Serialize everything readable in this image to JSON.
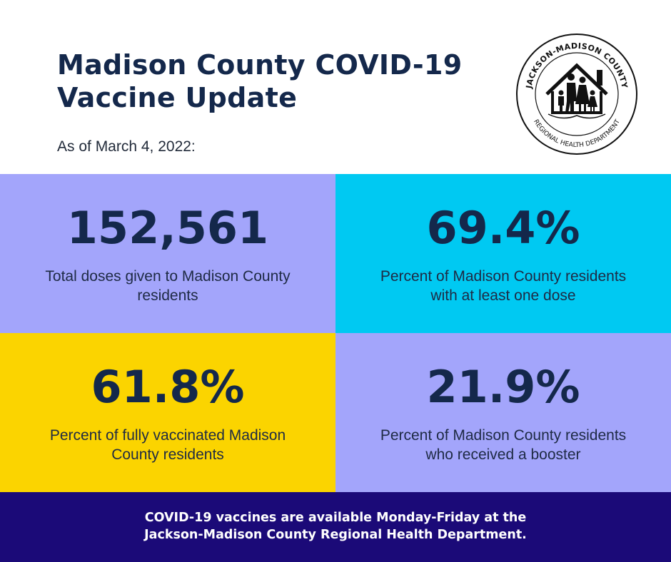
{
  "header": {
    "title_line1": "Madison County COVID-19",
    "title_line2": "Vaccine Update",
    "as_of": "As of March 4, 2022:"
  },
  "logo": {
    "top_text": "JACKSON-MADISON COUNTY",
    "bottom_text": "REGIONAL HEALTH DEPARTMENT",
    "icon": "family-house-icon"
  },
  "stats": [
    {
      "value": "152,561",
      "label": "Total doses given to Madison County residents",
      "color": "#a3a5fb"
    },
    {
      "value": "69.4%",
      "label": "Percent of Madison County residents with at least one dose",
      "color": "#00c9f2"
    },
    {
      "value": "61.8%",
      "label": "Percent of fully vaccinated Madison County residents",
      "color": "#fbd400"
    },
    {
      "value": "21.9%",
      "label": "Percent of Madison County residents who received a booster",
      "color": "#a3a5fb"
    }
  ],
  "footer": {
    "line1": "COVID-19 vaccines are available Monday-Friday at the",
    "line2": "Jackson-Madison County Regional Health Department.",
    "color": "#1b0a78"
  },
  "colors": {
    "title": "#14284b"
  }
}
